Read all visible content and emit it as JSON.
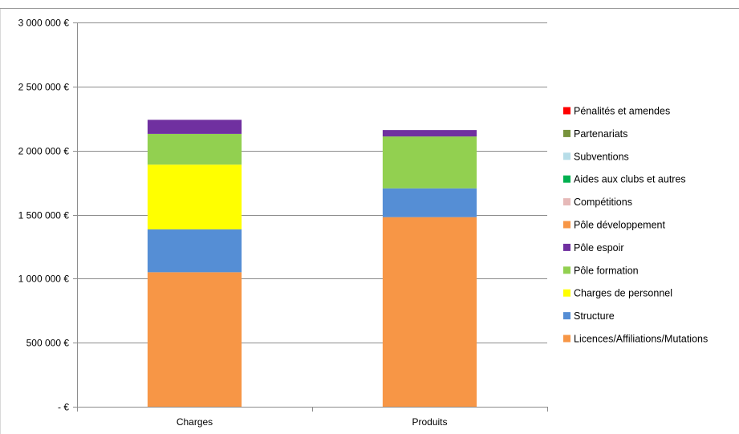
{
  "chart_data": {
    "type": "bar",
    "stacked": true,
    "categories": [
      "Charges",
      "Produits"
    ],
    "ylim": [
      0,
      3000000
    ],
    "yticks": [
      {
        "value": 0,
        "label": "-  €"
      },
      {
        "value": 500000,
        "label": "500 000 €"
      },
      {
        "value": 1000000,
        "label": "1 000 000 €"
      },
      {
        "value": 1500000,
        "label": "1 500 000 €"
      },
      {
        "value": 2000000,
        "label": "2 000 000 €"
      },
      {
        "value": 2500000,
        "label": "2 500 000 €"
      },
      {
        "value": 3000000,
        "label": "3 000 000 €"
      }
    ],
    "grid": true,
    "legend_position": "right",
    "series": [
      {
        "name": "Licences/Affiliations/Mutations",
        "color": "#f79646",
        "values": [
          1050000,
          1480000
        ]
      },
      {
        "name": "Structure",
        "color": "#558ed5",
        "values": [
          335000,
          225000
        ]
      },
      {
        "name": "Charges de personnel",
        "color": "#ffff00",
        "values": [
          505000,
          0
        ]
      },
      {
        "name": "Pôle formation",
        "color": "#92d050",
        "values": [
          240000,
          405000
        ]
      },
      {
        "name": "Pôle espoir",
        "color": "#7030a0",
        "values": [
          110000,
          50000
        ]
      },
      {
        "name": "Pôle développement",
        "color": "#f79646",
        "values": [
          0,
          0
        ]
      },
      {
        "name": "Compétitions",
        "color": "#e6b9b8",
        "values": [
          0,
          0
        ]
      },
      {
        "name": "Aides aux clubs et autres",
        "color": "#00b050",
        "values": [
          0,
          0
        ]
      },
      {
        "name": "Subventions",
        "color": "#b7dde8",
        "values": [
          0,
          0
        ]
      },
      {
        "name": "Partenariats",
        "color": "#77933c",
        "values": [
          0,
          0
        ]
      },
      {
        "name": "Pénalités et amendes",
        "color": "#ff0000",
        "values": [
          0,
          0
        ]
      }
    ],
    "legend_order": [
      "Pénalités et amendes",
      "Partenariats",
      "Subventions",
      "Aides aux clubs et autres",
      "Compétitions",
      "Pôle développement",
      "Pôle espoir",
      "Pôle formation",
      "Charges de personnel",
      "Structure",
      "Licences/Affiliations/Mutations"
    ]
  }
}
